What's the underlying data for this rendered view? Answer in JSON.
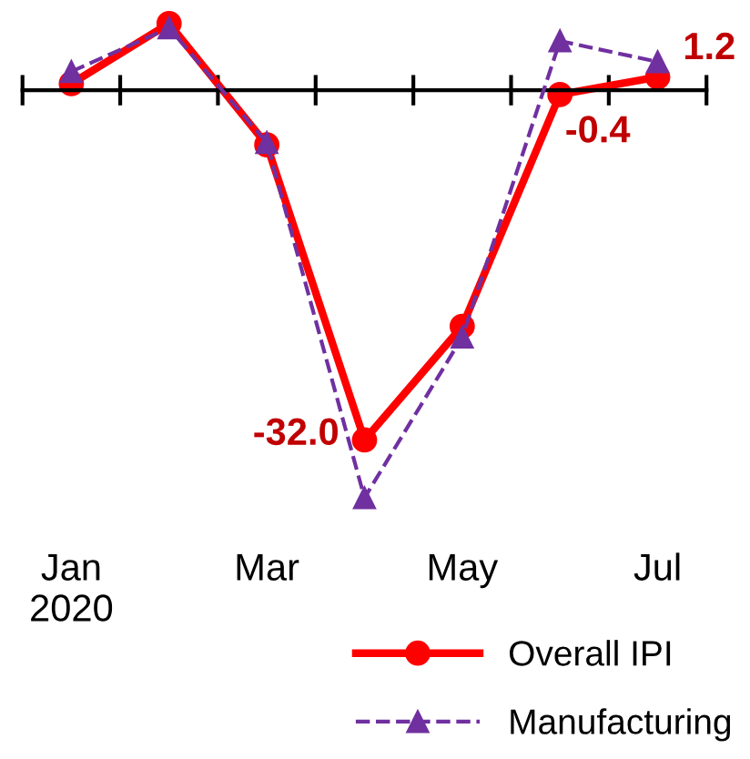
{
  "chart_data": {
    "type": "line",
    "categories": [
      "Jan\n2020",
      null,
      "Mar",
      null,
      "May",
      null,
      "Jul"
    ],
    "legend": "bottom right",
    "grid": false,
    "series": [
      {
        "name": "Overall IPI",
        "color": "#ff0000",
        "marker": "circle",
        "line_style": "solid",
        "values": [
          0.6,
          6.1,
          -5.0,
          -32.0,
          -21.6,
          -0.4,
          1.2
        ],
        "value_labels": [
          null,
          null,
          null,
          "-32.0",
          null,
          "-0.4",
          "1.2"
        ]
      },
      {
        "name": "Manufacturing",
        "color": "#7030a0",
        "marker": "triangle",
        "line_style": "dashed",
        "values": [
          1.7,
          5.7,
          -4.8,
          -37.3,
          -22.6,
          4.5,
          2.6
        ]
      }
    ]
  }
}
